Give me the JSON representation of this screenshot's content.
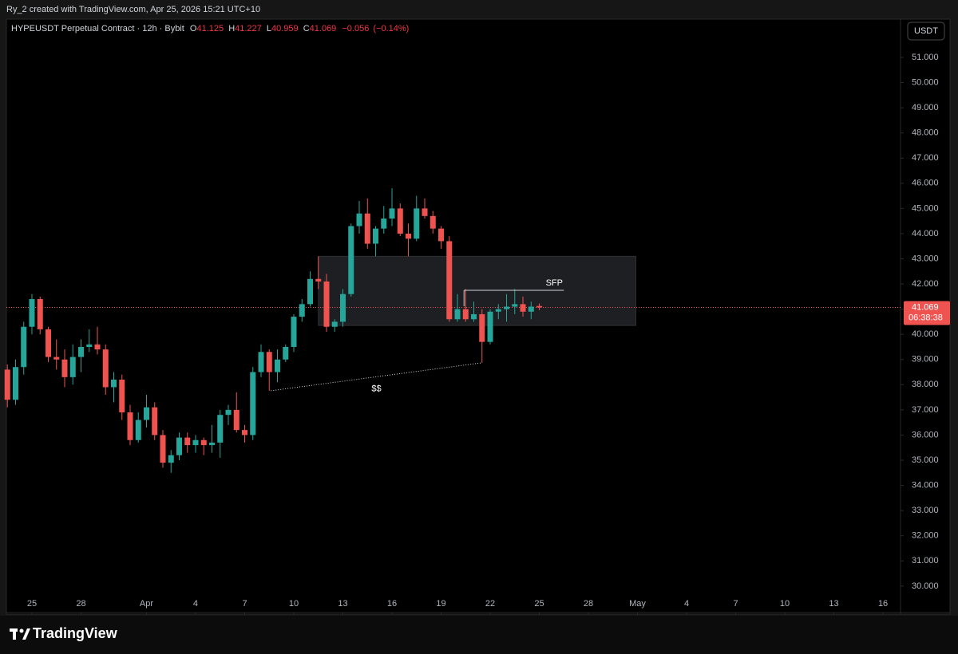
{
  "watermark": "Ry_2 created with TradingView.com, Apr 25, 2026 15:21 UTC+10",
  "brand": "TradingView",
  "chart_data": {
    "type": "candlestick",
    "title": "HYPEUSDT Perpetual Contract · 12h · Bybit",
    "legend": [
      {
        "label": "O",
        "value": 41.125
      },
      {
        "label": "H",
        "value": 41.227
      },
      {
        "label": "L",
        "value": 40.959
      },
      {
        "label": "C",
        "value": 41.069
      }
    ],
    "change": {
      "value": -0.056,
      "label": "−0.056"
    },
    "change_pct": {
      "value": -0.14,
      "label": "(−0.14%)"
    },
    "currency": "USDT",
    "up_color": "#26a69a",
    "down_color": "#ef5350",
    "grid": false,
    "x": [
      -1.5,
      -1,
      -0.5,
      0,
      0.5,
      1,
      1.5,
      2,
      2.5,
      3,
      3.5,
      4,
      4.5,
      5,
      5.5,
      6,
      6.5,
      7,
      7.5,
      8,
      8.5,
      9,
      9.5,
      10,
      10.5,
      11,
      11.5,
      12,
      12.5,
      13,
      13.5,
      14,
      14.5,
      15,
      15.5,
      16,
      16.5,
      17,
      17.5,
      18,
      18.5,
      19,
      19.5,
      20,
      20.5,
      21,
      21.5,
      22,
      22.5,
      23,
      23.5,
      24,
      24.5,
      25,
      25.5,
      26,
      26.5,
      27,
      27.5,
      28,
      28.5,
      29,
      29.5,
      30,
      30.5,
      31
    ],
    "open": [
      38.6,
      37.4,
      38.7,
      40.3,
      41.4,
      40.2,
      39.1,
      39.0,
      38.3,
      39.1,
      39.5,
      39.6,
      39.4,
      37.9,
      38.2,
      36.9,
      35.8,
      36.6,
      37.1,
      36.0,
      34.9,
      35.2,
      35.9,
      35.6,
      35.8,
      35.6,
      35.7,
      36.8,
      37.0,
      36.2,
      36.0,
      38.5,
      39.3,
      38.5,
      39.0,
      39.5,
      40.7,
      41.2,
      42.2,
      42.1,
      40.3,
      40.5,
      41.6,
      44.3,
      44.8,
      43.6,
      44.2,
      44.6,
      45.0,
      44.0,
      43.8,
      45.0,
      44.7,
      44.2,
      43.7,
      40.6,
      41.0,
      40.6,
      40.8,
      39.7,
      40.9,
      41.0,
      41.1,
      41.2,
      40.9,
      41.125
    ],
    "high": [
      38.8,
      39.0,
      40.5,
      41.6,
      41.5,
      40.3,
      39.8,
      39.4,
      39.6,
      39.8,
      40.2,
      40.3,
      39.6,
      38.5,
      38.4,
      37.2,
      36.9,
      37.6,
      37.3,
      36.2,
      35.4,
      36.1,
      36.1,
      36.0,
      35.9,
      36.4,
      37.0,
      37.2,
      37.7,
      36.4,
      38.7,
      39.6,
      39.4,
      39.4,
      39.6,
      40.8,
      41.4,
      42.5,
      43.1,
      42.4,
      40.6,
      41.8,
      44.4,
      45.3,
      45.4,
      44.3,
      45.1,
      45.8,
      45.2,
      44.4,
      45.5,
      45.4,
      44.9,
      44.3,
      43.9,
      41.6,
      41.8,
      41.3,
      41.0,
      41.0,
      41.2,
      41.6,
      41.8,
      41.5,
      41.3,
      41.227
    ],
    "low": [
      37.1,
      37.2,
      38.4,
      40.0,
      40.0,
      38.9,
      38.6,
      37.9,
      38.0,
      38.5,
      39.3,
      39.2,
      37.6,
      37.3,
      36.6,
      35.6,
      35.7,
      36.3,
      35.8,
      34.7,
      34.5,
      35.0,
      35.3,
      35.3,
      35.2,
      35.3,
      35.1,
      36.4,
      36.1,
      35.7,
      35.8,
      38.3,
      37.76,
      38.1,
      38.9,
      39.3,
      40.5,
      41.1,
      41.8,
      40.1,
      40.1,
      40.3,
      41.5,
      44.0,
      43.4,
      43.1,
      44.0,
      44.3,
      43.9,
      43.1,
      43.7,
      44.6,
      44.0,
      43.4,
      40.5,
      40.5,
      40.5,
      40.5,
      38.87,
      39.6,
      40.6,
      40.5,
      40.8,
      40.7,
      40.6,
      40.959
    ],
    "close": [
      37.4,
      38.7,
      40.3,
      41.4,
      40.2,
      39.1,
      39.0,
      38.3,
      39.1,
      39.5,
      39.6,
      39.4,
      37.9,
      38.2,
      36.9,
      35.8,
      36.6,
      37.1,
      36.0,
      34.9,
      35.2,
      35.9,
      35.6,
      35.8,
      35.6,
      35.7,
      36.8,
      37.0,
      36.2,
      36.0,
      38.5,
      39.3,
      38.5,
      39.0,
      39.5,
      40.7,
      41.2,
      42.2,
      42.1,
      40.3,
      40.5,
      41.6,
      44.3,
      44.8,
      43.6,
      44.2,
      44.6,
      45.0,
      44.0,
      43.8,
      45.0,
      44.7,
      44.2,
      43.7,
      40.6,
      41.0,
      40.6,
      40.8,
      39.7,
      40.9,
      41.0,
      41.1,
      41.2,
      40.9,
      41.1,
      41.069
    ],
    "xlim": [
      -1.56,
      53.07
    ],
    "xticks": [
      {
        "value": 0,
        "label": "25"
      },
      {
        "value": 3,
        "label": "28"
      },
      {
        "value": 7,
        "label": "Apr"
      },
      {
        "value": 10,
        "label": "4"
      },
      {
        "value": 13,
        "label": "7"
      },
      {
        "value": 16,
        "label": "10"
      },
      {
        "value": 19,
        "label": "13"
      },
      {
        "value": 22,
        "label": "16"
      },
      {
        "value": 25,
        "label": "19"
      },
      {
        "value": 28,
        "label": "22"
      },
      {
        "value": 31,
        "label": "25"
      },
      {
        "value": 34,
        "label": "28"
      },
      {
        "value": 37,
        "label": "May"
      },
      {
        "value": 40,
        "label": "4"
      },
      {
        "value": 43,
        "label": "7"
      },
      {
        "value": 46,
        "label": "10"
      },
      {
        "value": 49,
        "label": "13"
      },
      {
        "value": 52,
        "label": "16"
      }
    ],
    "ylim": [
      28.95,
      52.52
    ],
    "yticks": [
      {
        "value": 30,
        "label": "30.000"
      },
      {
        "value": 31,
        "label": "31.000"
      },
      {
        "value": 32,
        "label": "32.000"
      },
      {
        "value": 33,
        "label": "33.000"
      },
      {
        "value": 34,
        "label": "34.000"
      },
      {
        "value": 35,
        "label": "35.000"
      },
      {
        "value": 36,
        "label": "36.000"
      },
      {
        "value": 37,
        "label": "37.000"
      },
      {
        "value": 38,
        "label": "38.000"
      },
      {
        "value": 39,
        "label": "39.000"
      },
      {
        "value": 40,
        "label": "40.000"
      },
      {
        "value": 41,
        "label": "41.000"
      },
      {
        "value": 42,
        "label": "42.000"
      },
      {
        "value": 43,
        "label": "43.000"
      },
      {
        "value": 44,
        "label": "44.000"
      },
      {
        "value": 45,
        "label": "45.000"
      },
      {
        "value": 46,
        "label": "46.000"
      },
      {
        "value": 47,
        "label": "47.000"
      },
      {
        "value": 48,
        "label": "48.000"
      },
      {
        "value": 49,
        "label": "49.000"
      },
      {
        "value": 50,
        "label": "50.000"
      },
      {
        "value": 51,
        "label": "51.000"
      }
    ],
    "last_price": 41.069,
    "countdown": "06:38:38",
    "zone": {
      "x": [
        17.5,
        36.9
      ],
      "y": [
        40.35,
        43.1
      ]
    },
    "sfp_line": {
      "x": [
        26.4,
        32.5
      ],
      "y": 41.75,
      "label": "SFP"
    },
    "liquidity_line": {
      "x": [
        14.6,
        27.5
      ],
      "y": [
        37.76,
        38.87
      ],
      "label": "$$"
    }
  }
}
